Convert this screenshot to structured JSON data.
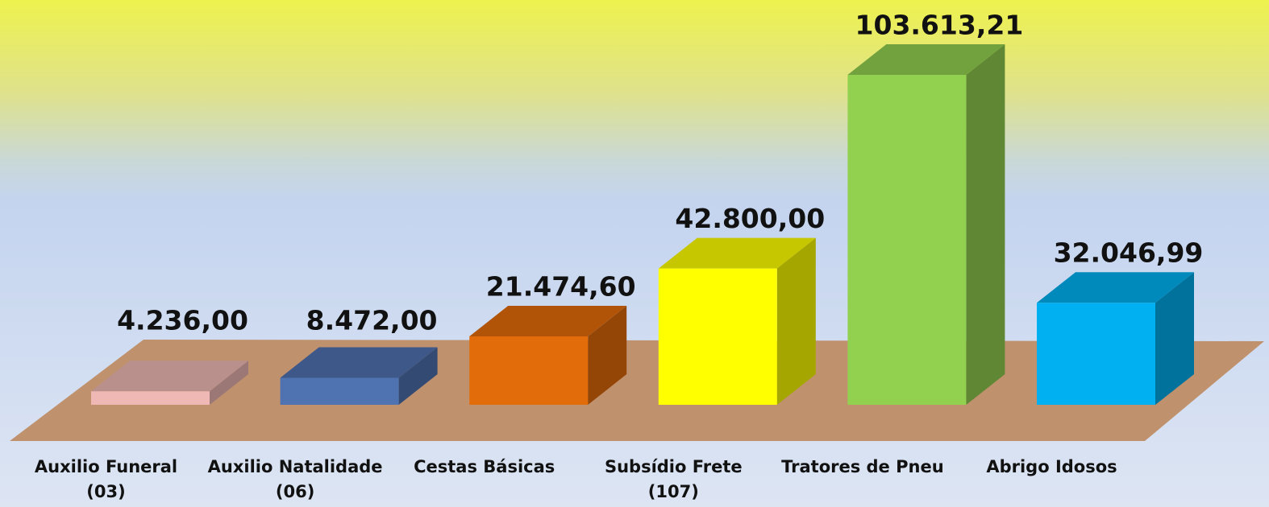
{
  "chart_data": {
    "type": "bar3d",
    "categories": [
      "Auxilio Funeral\n(03)",
      "Auxilio Natalidade\n(06)",
      "Cestas Básicas",
      "Subsídio Frete\n(107)",
      "Tratores de Pneu",
      "Abrigo Idosos"
    ],
    "values": [
      4236,
      8472,
      21474.6,
      42800,
      103613.21,
      32046.99
    ],
    "value_labels": [
      "4.236,00",
      "8.472,00",
      "21.474,60",
      "42.800,00",
      "103.613,21",
      "32.046,99"
    ],
    "colors": [
      "#efb8b4",
      "#4f72b0",
      "#e36c0a",
      "#ffff00",
      "#92d050",
      "#00b0f0"
    ]
  }
}
